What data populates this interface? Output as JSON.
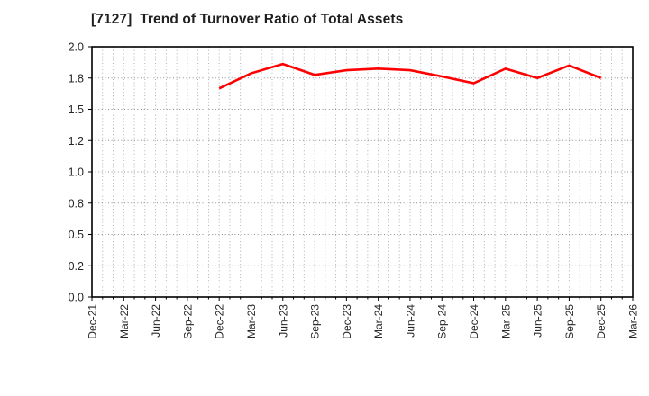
{
  "title": "[7127]  Trend of Turnover Ratio of Total Assets",
  "colors": {
    "line": "#ff0000",
    "grid": "#a6a6a6",
    "axis": "#000000",
    "text": "#262626",
    "background": "#ffffff"
  },
  "chart_data": {
    "type": "line",
    "title": "[7127]  Trend of Turnover Ratio of Total Assets",
    "categories": [
      "Dec-21",
      "Mar-22",
      "Jun-22",
      "Sep-22",
      "Dec-22",
      "Mar-23",
      "Jun-23",
      "Sep-23",
      "Dec-23",
      "Mar-24",
      "Jun-24",
      "Sep-24",
      "Dec-24",
      "Mar-25",
      "Jun-25",
      "Sep-25",
      "Dec-25",
      "Mar-26"
    ],
    "series": [
      {
        "name": "Turnover Ratio of Total Assets",
        "color": "#ff0000",
        "values": [
          null,
          null,
          null,
          null,
          1.7,
          1.83,
          1.89,
          1.82,
          1.85,
          1.86,
          1.85,
          1.81,
          1.75,
          1.86,
          1.8,
          1.88,
          1.8,
          null
        ]
      }
    ],
    "y_ticks": [
      0.0,
      0.2,
      0.5,
      0.8,
      1.0,
      1.2,
      1.5,
      1.8,
      2.0
    ],
    "y_tick_labels": [
      "0.0",
      "0.2",
      "0.5",
      "0.8",
      "1.0",
      "1.2",
      "1.5",
      "1.8",
      "2.0"
    ],
    "y_ticks_evenly_spaced": true,
    "minor_vertical_divisions": 3,
    "grid": true,
    "grid_style": "dotted",
    "legend": false,
    "x_label_rotation": -90
  }
}
